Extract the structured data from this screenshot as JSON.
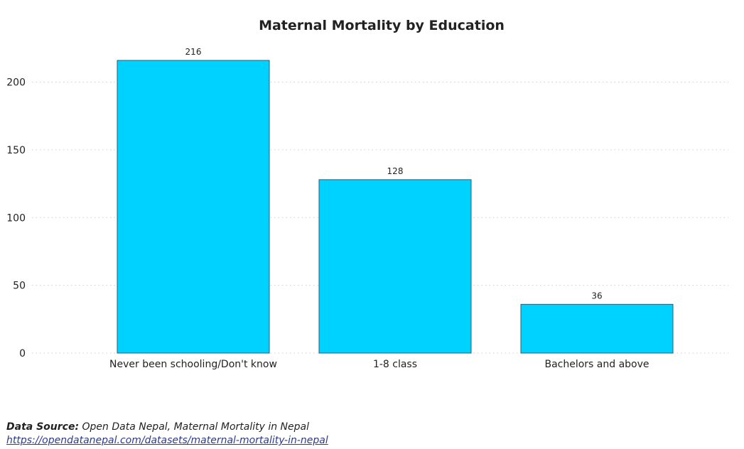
{
  "chart_data": {
    "type": "bar",
    "title": "Maternal Mortality by Education",
    "categories": [
      "Never been schooling/Don't know",
      "1-8 class",
      "Bachelors and above"
    ],
    "values": [
      216,
      128,
      36
    ],
    "data_labels": [
      "216",
      "128",
      "36"
    ],
    "xlabel": "",
    "ylabel": "",
    "ylim": [
      0,
      216
    ],
    "yticks": [
      0,
      50,
      100,
      150,
      200
    ],
    "grid": "horizontal-dotted",
    "legend": "none",
    "bar_color": "#00d2ff",
    "bar_edge_color": "#2f5e73"
  },
  "source": {
    "label": "Data Source:",
    "text": "Open Data Nepal, Maternal Mortality in Nepal",
    "link": "https://opendatanepal.com/datasets/maternal-mortality-in-nepal"
  }
}
